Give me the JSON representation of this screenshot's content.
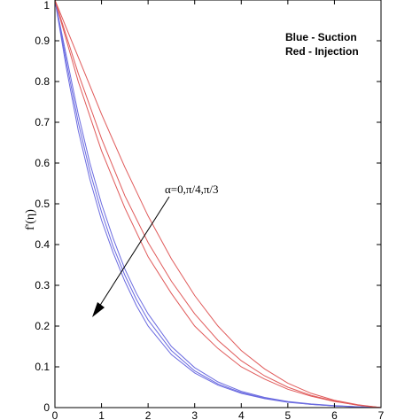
{
  "chart_data": {
    "type": "line",
    "title": "",
    "xlabel": "",
    "ylabel": "f'(η)",
    "xlim": [
      0,
      7
    ],
    "ylim": [
      0,
      1
    ],
    "x_ticks": [
      "0",
      "1",
      "2",
      "3",
      "4",
      "5",
      "6",
      "7"
    ],
    "y_ticks": [
      "0",
      "0.1",
      "0.2",
      "0.3",
      "0.4",
      "0.5",
      "0.6",
      "0.7",
      "0.8",
      "0.9",
      "1"
    ],
    "grid": false,
    "legend_lines": [
      "Blue - Suction",
      "Red - Injection"
    ],
    "annotation": "α=0,π/4,π/3",
    "colors": {
      "suction": "#6a6ae0",
      "injection": "#e05a5a"
    },
    "series": [
      {
        "group": "suction",
        "x": [
          0,
          0.25,
          0.5,
          0.75,
          1,
          1.25,
          1.5,
          1.75,
          2,
          2.5,
          3,
          3.5,
          4,
          4.5,
          5,
          5.5,
          6,
          6.5,
          7
        ],
        "y": [
          1,
          0.83,
          0.68,
          0.56,
          0.46,
          0.38,
          0.31,
          0.25,
          0.2,
          0.13,
          0.085,
          0.055,
          0.035,
          0.022,
          0.013,
          0.008,
          0.004,
          0.002,
          0
        ]
      },
      {
        "group": "suction",
        "x": [
          0,
          0.25,
          0.5,
          0.75,
          1,
          1.25,
          1.5,
          1.75,
          2,
          2.5,
          3,
          3.5,
          4,
          4.5,
          5,
          5.5,
          6,
          6.5,
          7
        ],
        "y": [
          1,
          0.845,
          0.7,
          0.58,
          0.48,
          0.395,
          0.325,
          0.265,
          0.215,
          0.14,
          0.09,
          0.058,
          0.037,
          0.023,
          0.014,
          0.008,
          0.004,
          0.002,
          0
        ]
      },
      {
        "group": "suction",
        "x": [
          0,
          0.25,
          0.5,
          0.75,
          1,
          1.25,
          1.5,
          1.75,
          2,
          2.5,
          3,
          3.5,
          4,
          4.5,
          5,
          5.5,
          6,
          6.5,
          7
        ],
        "y": [
          1,
          0.86,
          0.72,
          0.6,
          0.5,
          0.415,
          0.34,
          0.28,
          0.23,
          0.15,
          0.098,
          0.063,
          0.04,
          0.025,
          0.015,
          0.009,
          0.005,
          0.002,
          0
        ]
      },
      {
        "group": "injection",
        "x": [
          0,
          0.5,
          1,
          1.5,
          2,
          2.5,
          3,
          3.5,
          4,
          4.5,
          5,
          5.5,
          6,
          6.5,
          7
        ],
        "y": [
          1,
          0.8,
          0.63,
          0.49,
          0.37,
          0.28,
          0.2,
          0.145,
          0.1,
          0.07,
          0.045,
          0.028,
          0.015,
          0.006,
          0
        ]
      },
      {
        "group": "injection",
        "x": [
          0,
          0.5,
          1,
          1.5,
          2,
          2.5,
          3,
          3.5,
          4,
          4.5,
          5,
          5.5,
          6,
          6.5,
          7
        ],
        "y": [
          1,
          0.82,
          0.66,
          0.52,
          0.405,
          0.31,
          0.23,
          0.165,
          0.115,
          0.078,
          0.05,
          0.03,
          0.016,
          0.006,
          0
        ]
      },
      {
        "group": "injection",
        "x": [
          0,
          0.5,
          1,
          1.5,
          2,
          2.5,
          3,
          3.5,
          4,
          4.5,
          5,
          5.5,
          6,
          6.5,
          7
        ],
        "y": [
          1,
          0.86,
          0.72,
          0.59,
          0.47,
          0.365,
          0.275,
          0.2,
          0.14,
          0.095,
          0.06,
          0.035,
          0.018,
          0.007,
          0
        ]
      }
    ]
  }
}
